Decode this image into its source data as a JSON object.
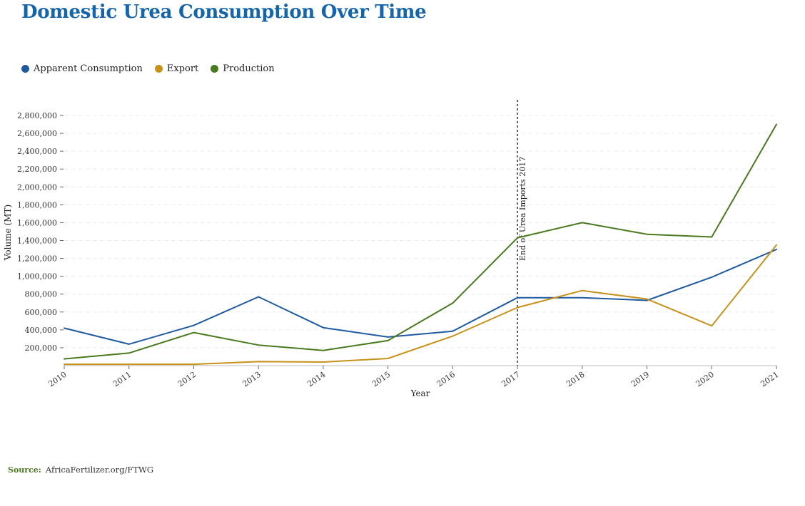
{
  "title": "Domestic Urea Consumption Over Time",
  "source": {
    "label": "Source:",
    "text": "AfricaFertilizer.org/FTWG"
  },
  "colors": {
    "apparent_consumption": "#1f5aa0",
    "export": "#c8921a",
    "production": "#4a7a1f",
    "title": "#1565a8"
  },
  "chart_data": {
    "type": "line",
    "title": "Domestic Urea Consumption Over Time",
    "xlabel": "Year",
    "ylabel": "Volume (MT)",
    "ylim": [
      0,
      2800000
    ],
    "xlim": [
      2010,
      2021
    ],
    "grid": true,
    "legend_position": "top-left",
    "x": [
      2010,
      2011,
      2012,
      2013,
      2014,
      2015,
      2016,
      2017,
      2018,
      2019,
      2020,
      2021
    ],
    "x_tick_labels": [
      "2010",
      "2011",
      "2012",
      "2013",
      "2014",
      "2015",
      "2016",
      "2017",
      "2018",
      "2019",
      "2020",
      "2021"
    ],
    "y_ticks": [
      200000,
      400000,
      600000,
      800000,
      1000000,
      1200000,
      1400000,
      1600000,
      1800000,
      2000000,
      2200000,
      2400000,
      2600000,
      2800000
    ],
    "y_tick_labels": [
      "200,000",
      "400,000",
      "600,000",
      "800,000",
      "1,000,000",
      "1,200,000",
      "1,400,000",
      "1,600,000",
      "1,800,000",
      "2,000,000",
      "2,200,000",
      "2,400,000",
      "2,600,000",
      "2,800,000"
    ],
    "series": [
      {
        "name": "Apparent Consumption",
        "color": "#1f5aa0",
        "values": [
          420000,
          240000,
          450000,
          770000,
          425000,
          320000,
          385000,
          760000,
          760000,
          730000,
          990000,
          1300000
        ]
      },
      {
        "name": "Export",
        "color": "#c8921a",
        "values": [
          15000,
          15000,
          15000,
          45000,
          40000,
          80000,
          330000,
          650000,
          840000,
          745000,
          445000,
          1350000
        ]
      },
      {
        "name": "Production",
        "color": "#4a7a1f",
        "values": [
          75000,
          140000,
          370000,
          230000,
          170000,
          280000,
          700000,
          1430000,
          1600000,
          1470000,
          1440000,
          2700000
        ]
      }
    ],
    "annotations": [
      {
        "x": 2017,
        "text": "End of Urea Imports 2017",
        "style": "dashed-vertical-line"
      }
    ]
  }
}
